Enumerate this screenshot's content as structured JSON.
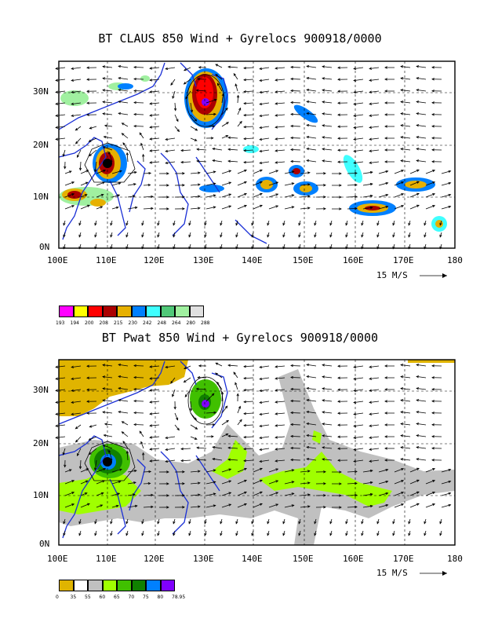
{
  "panels": [
    {
      "title": "BT CLAUS 850 Wind + Gyrelocs 900918/0000",
      "y_ticks": [
        "30N",
        "20N",
        "10N",
        "0N"
      ],
      "x_ticks": [
        "100E",
        "110E",
        "120E",
        "130E",
        "140E",
        "150E",
        "160E",
        "170E",
        "180"
      ],
      "ref_vector": "15 M/S",
      "legend": {
        "colors": [
          "#ff00ff",
          "#ffff00",
          "#ff0000",
          "#aa0000",
          "#e6b000",
          "#0080ff",
          "#40ffff",
          "#50c878",
          "#a0f0a0",
          "#e0e0e0"
        ],
        "labels": [
          "193",
          "194",
          "200",
          "208",
          "215",
          "230",
          "242",
          "248",
          "264",
          "280",
          "288"
        ]
      }
    },
    {
      "title": "BT Pwat 850 Wind + Gyrelocs 900918/0000",
      "y_ticks": [
        "30N",
        "20N",
        "10N",
        "0N"
      ],
      "x_ticks": [
        "100E",
        "110E",
        "120E",
        "130E",
        "140E",
        "150E",
        "160E",
        "170E",
        "180"
      ],
      "ref_vector": "15 M/S",
      "legend": {
        "colors": [
          "#e0b400",
          "#ffffff",
          "#c0c0c0",
          "#a0ff00",
          "#40c000",
          "#108000",
          "#0080ff",
          "#8000ff"
        ],
        "labels": [
          "0",
          "35",
          "55",
          "60",
          "65",
          "70",
          "75",
          "80",
          "78.95"
        ]
      }
    }
  ]
}
